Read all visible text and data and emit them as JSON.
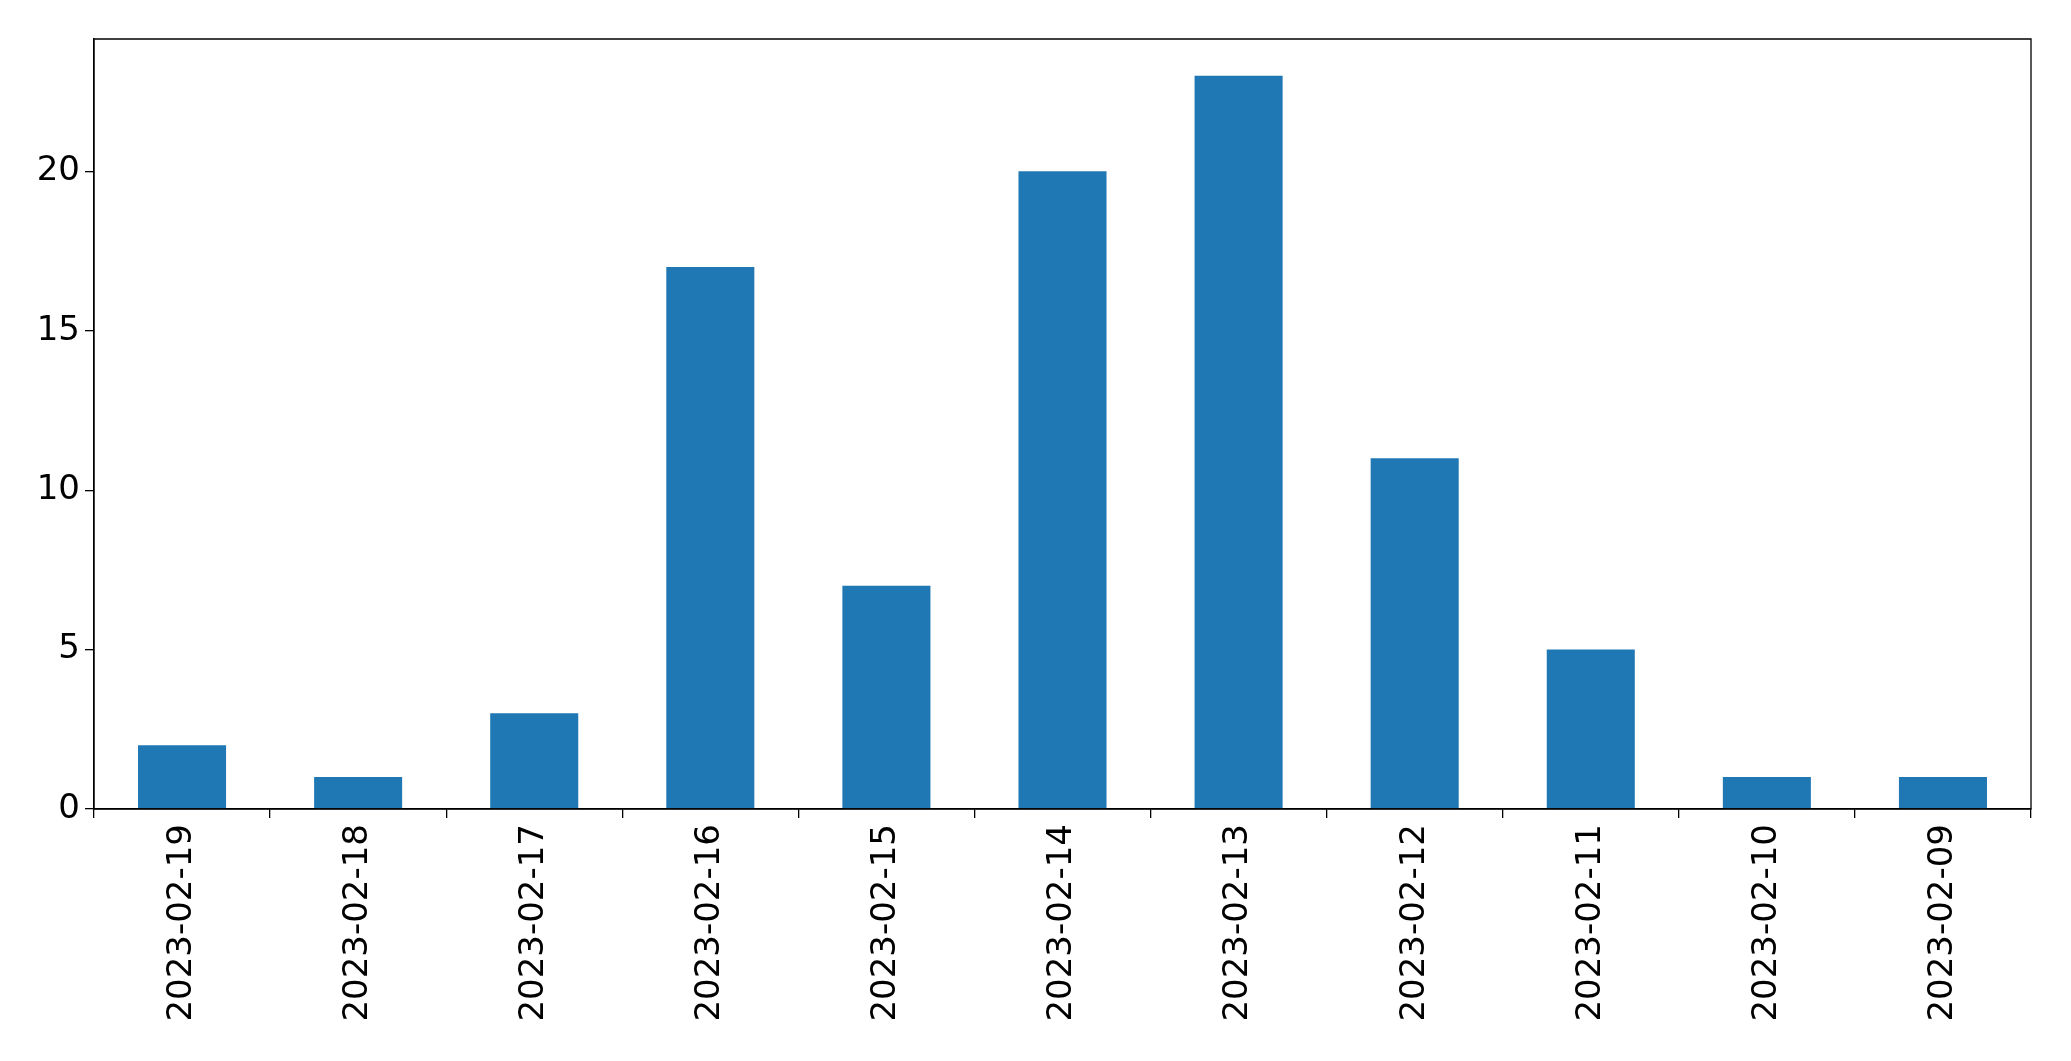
{
  "chart_data": {
    "type": "bar",
    "categories": [
      "2023-02-19",
      "2023-02-18",
      "2023-02-17",
      "2023-02-16",
      "2023-02-15",
      "2023-02-14",
      "2023-02-13",
      "2023-02-12",
      "2023-02-11",
      "2023-02-10",
      "2023-02-09"
    ],
    "values": [
      2,
      1,
      3,
      17,
      7,
      20,
      23,
      11,
      5,
      1,
      1
    ],
    "color": "#1f77b4",
    "ylim": [
      0,
      24.15
    ],
    "yticks": [
      0,
      5,
      10,
      15,
      20
    ]
  }
}
